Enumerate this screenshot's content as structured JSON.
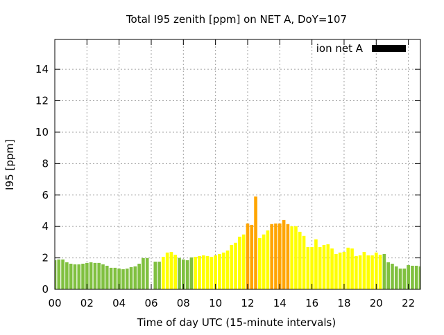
{
  "chart_data": {
    "type": "bar",
    "title": "Total I95 zenith [ppm] on NET A, DoY=107",
    "xlabel": "Time of day UTC (15-minute intervals)",
    "ylabel": "I95 [ppm]",
    "xlim": [
      0,
      22.75
    ],
    "ylim": [
      0,
      15.9
    ],
    "grid": true,
    "legend": {
      "label": "ion net A",
      "placement": "top-right",
      "color": "#000000"
    },
    "xticks": [
      {
        "value": 0,
        "label": "00"
      },
      {
        "value": 2,
        "label": "02"
      },
      {
        "value": 4,
        "label": "04"
      },
      {
        "value": 6,
        "label": "06"
      },
      {
        "value": 8,
        "label": "08"
      },
      {
        "value": 10,
        "label": "10"
      },
      {
        "value": 12,
        "label": "12"
      },
      {
        "value": 14,
        "label": "14"
      },
      {
        "value": 16,
        "label": "16"
      },
      {
        "value": 18,
        "label": "18"
      },
      {
        "value": 20,
        "label": "20"
      },
      {
        "value": 22,
        "label": "22"
      }
    ],
    "yticks": [
      {
        "value": 0,
        "label": "0"
      },
      {
        "value": 2,
        "label": "2"
      },
      {
        "value": 4,
        "label": "4"
      },
      {
        "value": 6,
        "label": "6"
      },
      {
        "value": 8,
        "label": "8"
      },
      {
        "value": 10,
        "label": "10"
      },
      {
        "value": 12,
        "label": "12"
      },
      {
        "value": 14,
        "label": "14"
      }
    ],
    "interval_hours": 0.25,
    "palette": {
      "g": "#80c040",
      "y": "#ffff00",
      "o": "#ffa500"
    },
    "values": [
      1.85,
      1.9,
      1.9,
      1.72,
      1.63,
      1.59,
      1.59,
      1.63,
      1.68,
      1.72,
      1.68,
      1.68,
      1.59,
      1.5,
      1.37,
      1.37,
      1.32,
      1.28,
      1.32,
      1.41,
      1.46,
      1.63,
      1.99,
      1.99,
      null,
      1.76,
      1.76,
      2.07,
      2.34,
      2.38,
      2.2,
      2.0,
      1.9,
      1.85,
      2.03,
      2.07,
      2.12,
      2.16,
      2.12,
      2.07,
      2.16,
      2.25,
      2.34,
      2.47,
      2.82,
      2.96,
      3.35,
      3.49,
      4.19,
      4.1,
      5.91,
      3.26,
      3.49,
      3.75,
      4.15,
      4.19,
      4.19,
      4.41,
      4.15,
      4.01,
      4.01,
      3.66,
      3.4,
      2.69,
      2.69,
      3.18,
      2.69,
      2.82,
      2.87,
      2.6,
      2.25,
      2.34,
      2.38,
      2.65,
      2.6,
      2.12,
      2.16,
      2.38,
      2.16,
      2.16,
      2.34,
      2.2,
      2.25,
      1.72,
      1.63,
      1.46,
      1.32,
      1.32,
      1.54,
      1.5,
      1.5,
      1.46
    ],
    "colors": "gggggggggggggggggggggggggggyyyyggggyyyyyyyyyyyyyoooyyyoooooyyyyyyyyyyyyyyyyyyyyyyygggggggggg"
  }
}
